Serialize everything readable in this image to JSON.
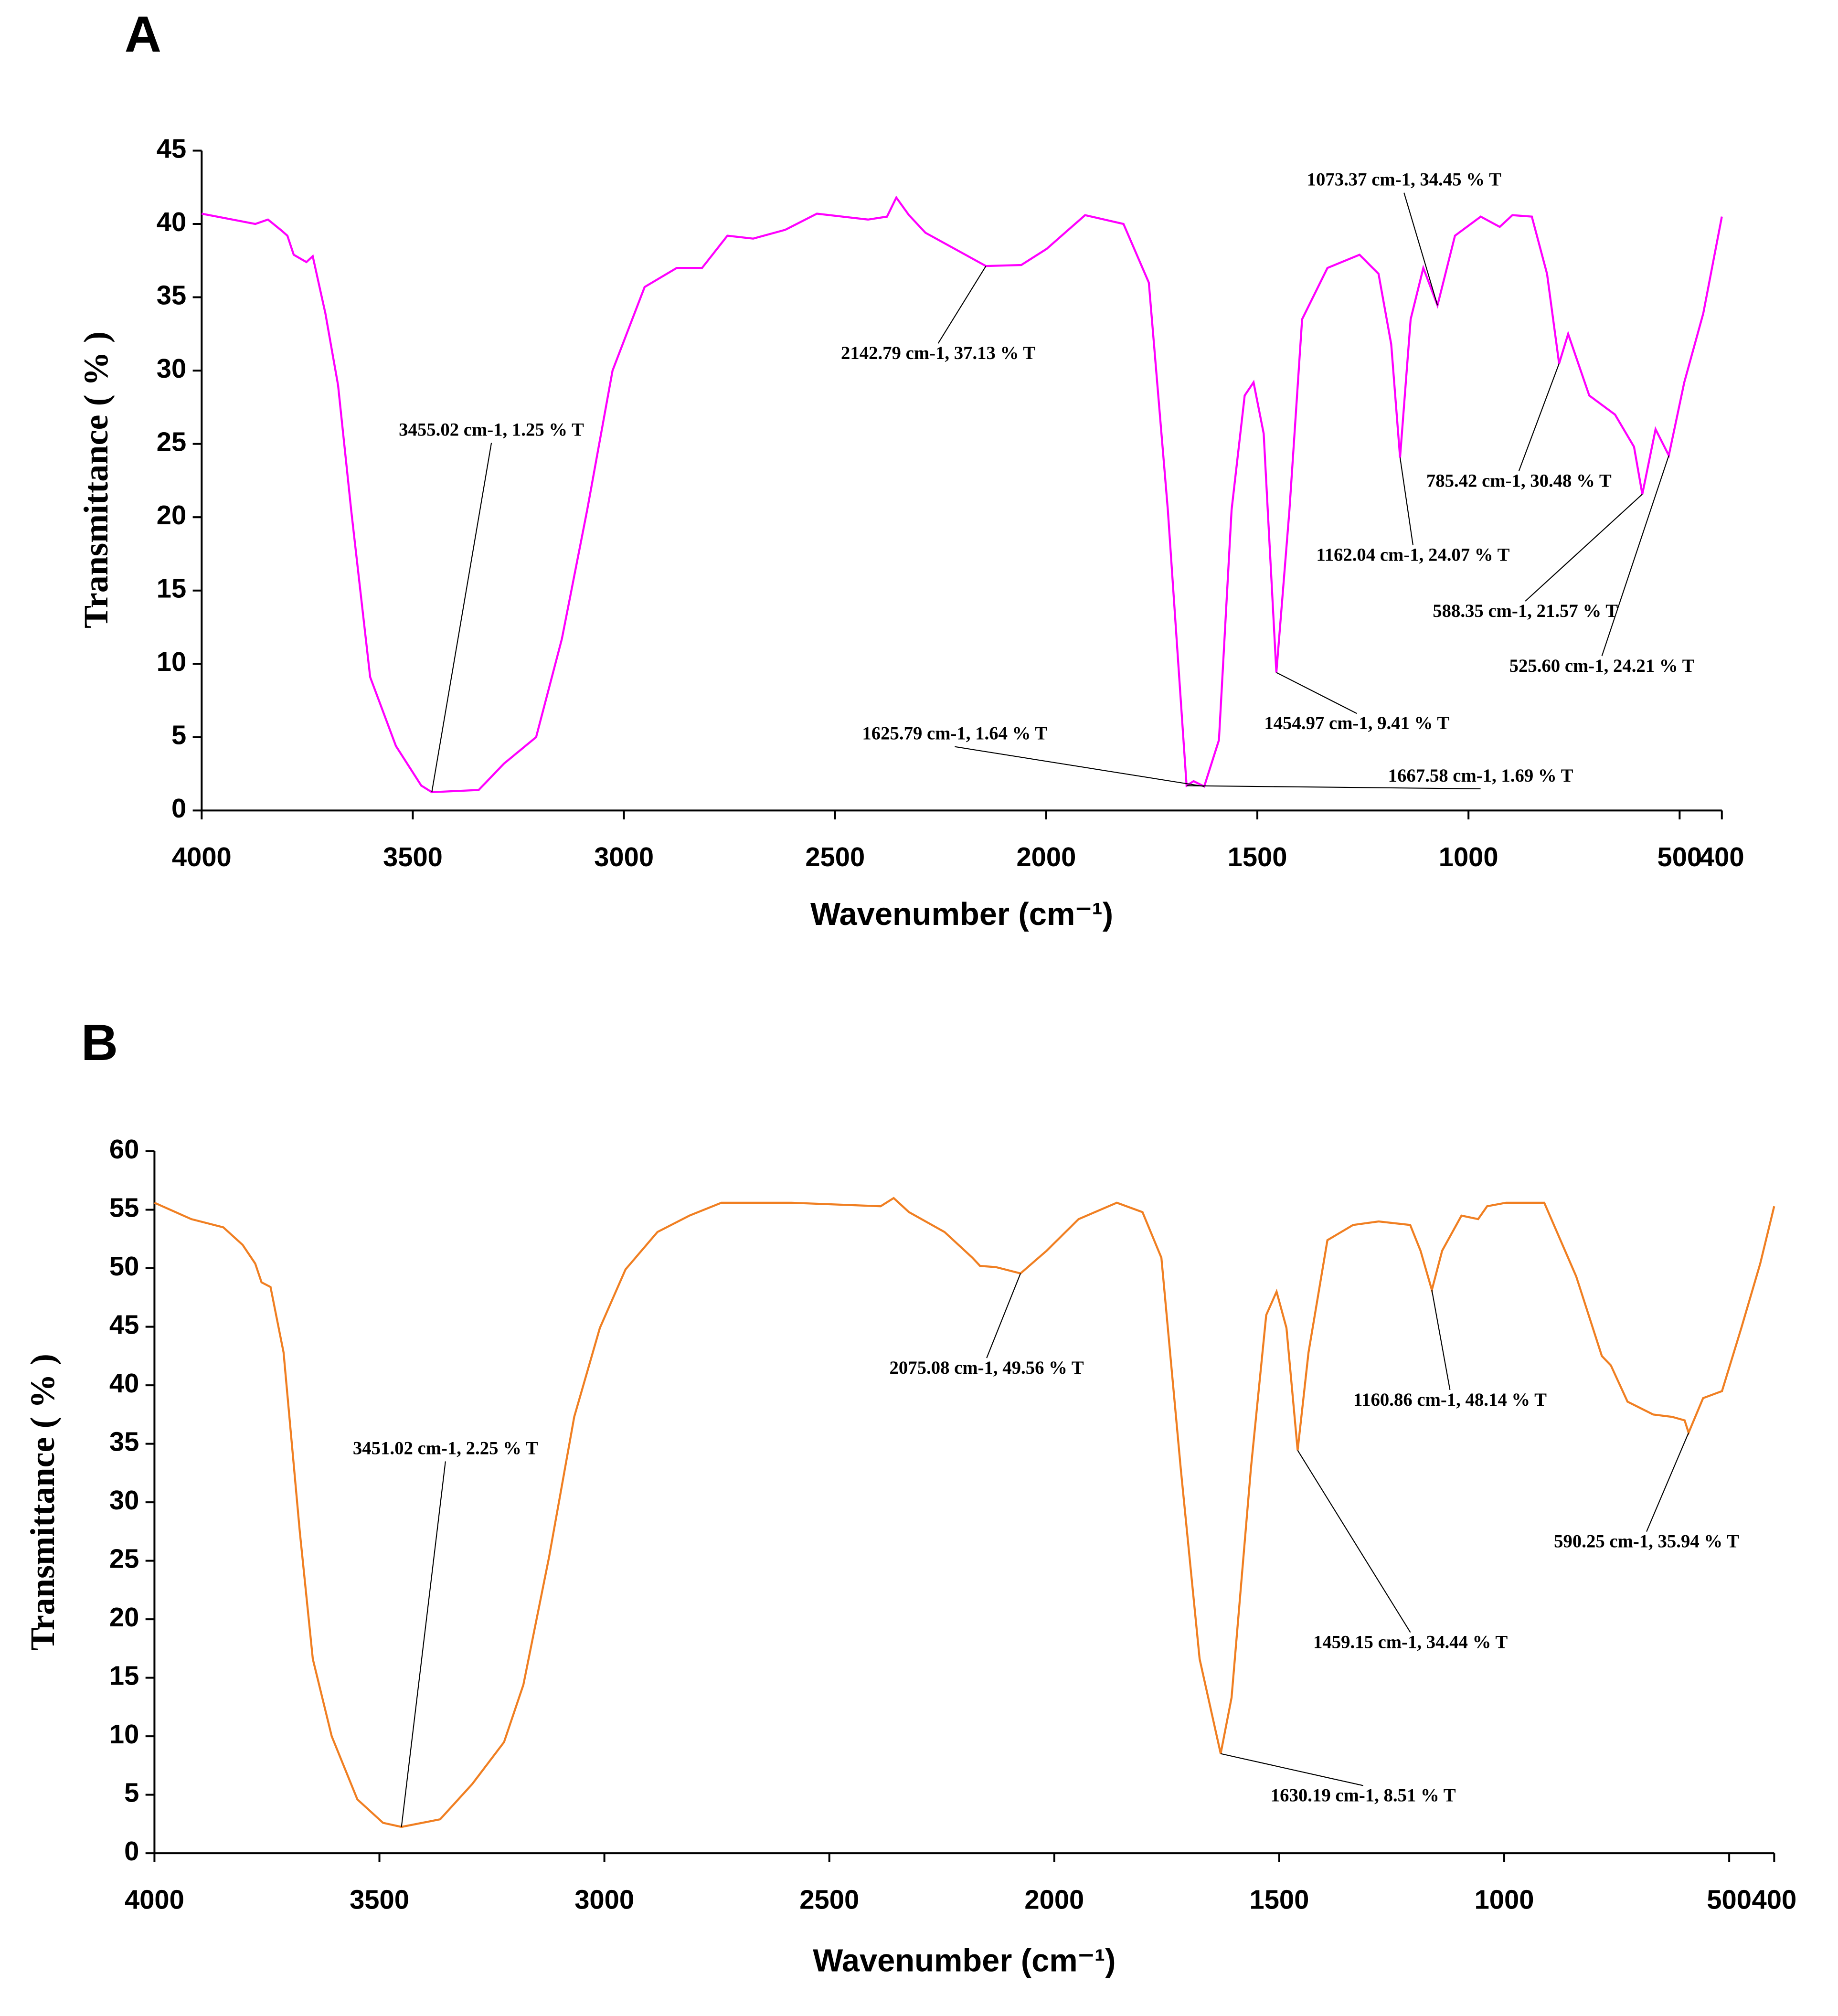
{
  "chart_data": [
    {
      "type": "line",
      "label": "A",
      "xlabel": "Wavenumber (cm⁻¹)",
      "ylabel": "Transmittance ( % )",
      "color": "#ff00ff",
      "xlim": [
        4000,
        400
      ],
      "xticks": [
        4000,
        3500,
        3000,
        2500,
        2000,
        1500,
        1000,
        500,
        400
      ],
      "ylim": [
        0,
        45
      ],
      "yticks": [
        0,
        5,
        10,
        15,
        20,
        25,
        30,
        35,
        40,
        45
      ],
      "x": [
        4000,
        3873,
        3843,
        3813,
        3797,
        3782,
        3752,
        3737,
        3707,
        3677,
        3646,
        3601,
        3540,
        3480,
        3455.02,
        3344,
        3284,
        3208,
        3147,
        3087,
        3027,
        2951,
        2875,
        2815,
        2755,
        2694,
        2618,
        2543,
        2422,
        2377,
        2355,
        2325,
        2286,
        2142.79,
        2059,
        1999,
        1908,
        1817,
        1757,
        1712,
        1667.58,
        1651,
        1625.79,
        1591,
        1561,
        1530,
        1509,
        1485,
        1454.97,
        1424,
        1394,
        1334,
        1258,
        1213,
        1183,
        1162.04,
        1137,
        1107,
        1073.37,
        1032,
        971,
        926,
        896,
        850,
        814,
        785.42,
        764,
        714,
        653,
        608,
        588.35,
        557,
        525.6,
        489,
        444,
        400
      ],
      "values": [
        40.7,
        40.0,
        40.3,
        39.6,
        39.2,
        37.9,
        37.4,
        37.8,
        33.9,
        29,
        20.5,
        9.1,
        4.4,
        1.7,
        1.25,
        1.4,
        3.2,
        5,
        11.7,
        20.5,
        30,
        35.7,
        37,
        37,
        39.2,
        39,
        39.6,
        40.7,
        40.3,
        40.5,
        41.8,
        40.6,
        39.4,
        37.13,
        37.2,
        38.3,
        40.6,
        40,
        36,
        20.5,
        1.69,
        2,
        1.64,
        4.8,
        20.5,
        28.3,
        29.2,
        25.7,
        9.41,
        20.5,
        33.5,
        37,
        37.9,
        36.6,
        31.8,
        24.07,
        33.5,
        37,
        34.45,
        39.2,
        40.5,
        39.8,
        40.6,
        40.5,
        36.6,
        30.48,
        32.5,
        28.3,
        27,
        24.8,
        21.57,
        26,
        24.21,
        29.2,
        33.9,
        40.5
      ],
      "annotations": [
        {
          "x": 3455.02,
          "y": 1.25,
          "text": "3455.02 cm-1, 1.25 % T"
        },
        {
          "x": 2142.79,
          "y": 37.13,
          "text": "2142.79 cm-1, 37.13 % T"
        },
        {
          "x": 1073.37,
          "y": 34.45,
          "text": "1073.37 cm-1, 34.45 % T"
        },
        {
          "x": 785.42,
          "y": 30.48,
          "text": "785.42 cm-1, 30.48 % T"
        },
        {
          "x": 1162.04,
          "y": 24.07,
          "text": "1162.04 cm-1, 24.07 % T"
        },
        {
          "x": 588.35,
          "y": 21.57,
          "text": "588.35 cm-1, 21.57 % T"
        },
        {
          "x": 525.6,
          "y": 24.21,
          "text": "525.60 cm-1, 24.21 % T"
        },
        {
          "x": 1454.97,
          "y": 9.41,
          "text": "1454.97 cm-1, 9.41 % T"
        },
        {
          "x": 1625.79,
          "y": 1.64,
          "text": "1625.79 cm-1, 1.64 % T"
        },
        {
          "x": 1667.58,
          "y": 1.69,
          "text": "1667.58 cm-1, 1.69 % T"
        }
      ]
    },
    {
      "type": "line",
      "label": "B",
      "xlabel": "Wavenumber (cm⁻¹)",
      "ylabel": "Transmittance ( % )",
      "color": "#f07f22",
      "xlim": [
        4000,
        400
      ],
      "xticks": [
        4000,
        3500,
        3000,
        2500,
        2000,
        1500,
        1000,
        500,
        400
      ],
      "ylim": [
        0,
        60
      ],
      "yticks": [
        0,
        5,
        10,
        15,
        20,
        25,
        30,
        35,
        40,
        45,
        50,
        55,
        60
      ],
      "x": [
        4000,
        3918,
        3847,
        3804,
        3776,
        3762,
        3742,
        3713,
        3677,
        3648,
        3606,
        3549,
        3492,
        3451.02,
        3365,
        3294,
        3223,
        3180,
        3123,
        3067,
        3010,
        2953,
        2882,
        2811,
        2740,
        2584,
        2386,
        2357,
        2323,
        2244,
        2182,
        2165,
        2130,
        2075.08,
        2017,
        1946,
        1861,
        1804,
        1762,
        1719,
        1677,
        1630.19,
        1606,
        1563,
        1529,
        1506,
        1484,
        1459.15,
        1435,
        1393,
        1336,
        1279,
        1209,
        1186,
        1160.86,
        1138,
        1095,
        1058,
        1038,
        996,
        911,
        840,
        783,
        763,
        726,
        669,
        627,
        599,
        590.25,
        558,
        516,
        473,
        431,
        400
      ],
      "values": [
        55.6,
        54.2,
        53.5,
        52,
        50.4,
        48.8,
        48.4,
        42.8,
        27.5,
        16.6,
        10,
        4.6,
        2.6,
        2.25,
        2.9,
        5.9,
        9.5,
        14.4,
        25.3,
        37.3,
        44.9,
        49.9,
        53.1,
        54.5,
        55.6,
        55.6,
        55.3,
        56,
        54.8,
        53.1,
        50.9,
        50.2,
        50.1,
        49.56,
        51.5,
        54.2,
        55.6,
        54.8,
        50.9,
        32.9,
        16.6,
        8.51,
        13.3,
        32.9,
        46,
        48,
        44.9,
        34.44,
        42.8,
        52.4,
        53.7,
        54,
        53.7,
        51.5,
        48.14,
        51.5,
        54.5,
        54.2,
        55.3,
        55.6,
        55.6,
        49.3,
        42.5,
        41.7,
        38.6,
        37.5,
        37.3,
        37,
        35.94,
        38.9,
        39.5,
        44.9,
        50.4,
        55.3
      ],
      "annotations": [
        {
          "x": 3451.02,
          "y": 2.25,
          "text": "3451.02 cm-1, 2.25 % T"
        },
        {
          "x": 2075.08,
          "y": 49.56,
          "text": "2075.08 cm-1, 49.56 % T"
        },
        {
          "x": 1160.86,
          "y": 48.14,
          "text": "1160.86 cm-1, 48.14 % T"
        },
        {
          "x": 590.25,
          "y": 35.94,
          "text": "590.25 cm-1, 35.94 % T"
        },
        {
          "x": 1459.15,
          "y": 34.44,
          "text": "1459.15 cm-1, 34.44 % T"
        },
        {
          "x": 1630.19,
          "y": 8.51,
          "text": "1630.19 cm-1, 8.51 % T"
        }
      ]
    }
  ]
}
